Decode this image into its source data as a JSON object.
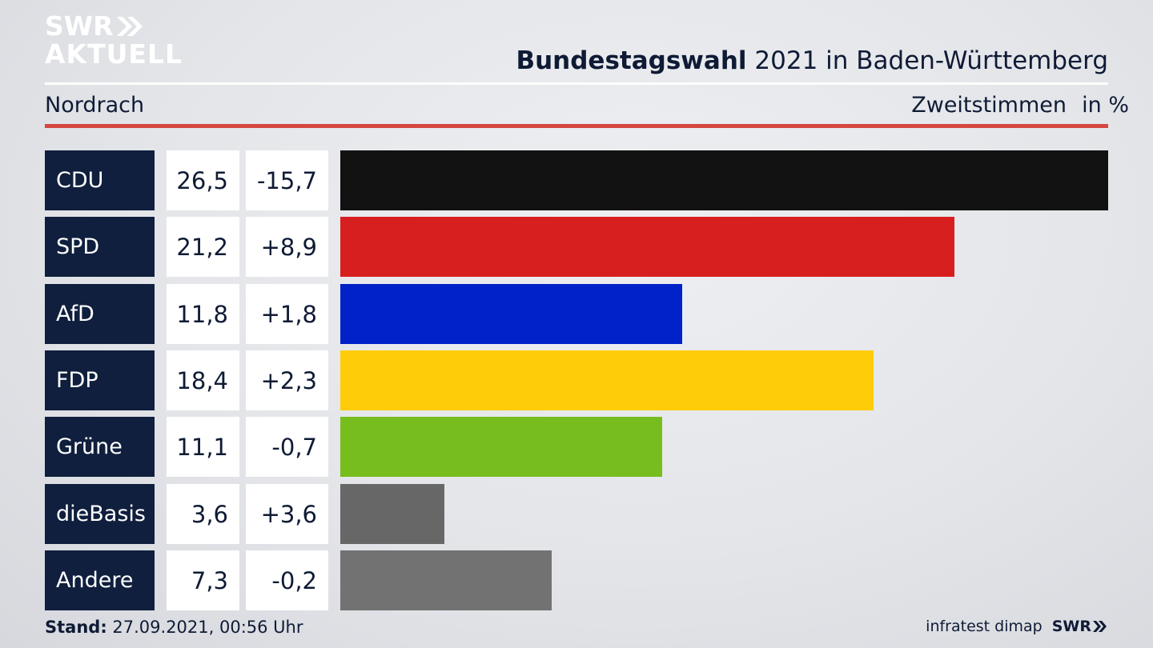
{
  "logo": {
    "line1": "SWR",
    "line2": "AKTUELL"
  },
  "header": {
    "title_bold": "Bundestagswahl",
    "title_rest": " 2021 in Baden-Württemberg",
    "subtitle": "Nordrach",
    "measure": "Zweitstimmen",
    "unit": "in %"
  },
  "chart_data": {
    "type": "bar",
    "categories": [
      "CDU",
      "SPD",
      "AfD",
      "FDP",
      "Grüne",
      "dieBasis",
      "Andere"
    ],
    "values": [
      26.5,
      21.2,
      11.8,
      18.4,
      11.1,
      3.6,
      7.3
    ],
    "value_labels": [
      "26,5",
      "21,2",
      "11,8",
      "18,4",
      "11,1",
      "3,6",
      "7,3"
    ],
    "diff_labels": [
      "-15,7",
      "+8,9",
      "+1,8",
      "+2,3",
      "-0,7",
      "+3,6",
      "-0,2"
    ],
    "colors": [
      "#121212",
      "#d71f1f",
      "#0022c8",
      "#ffcc0a",
      "#77bd1d",
      "#676767",
      "#727272"
    ],
    "orientation": "horizontal",
    "xmax": 26.5
  },
  "footer": {
    "stand_label": "Stand:",
    "stand_value": " 27.09.2021, 00:56 Uhr",
    "source": "infratest dimap",
    "brand": "SWR"
  }
}
